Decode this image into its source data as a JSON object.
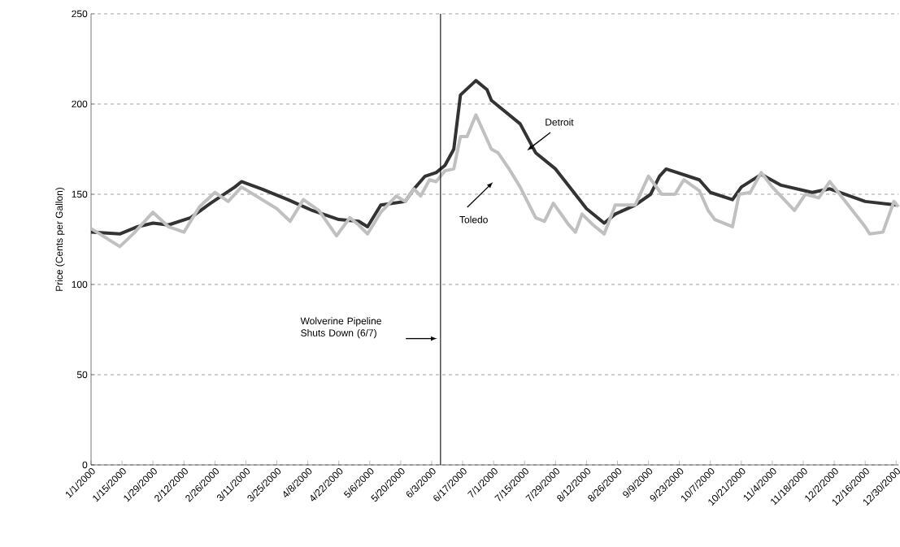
{
  "chart_data": {
    "type": "line",
    "ylabel": "Price (Cents per Gallon)",
    "xlim": [
      "2000-01-01",
      "2000-12-31"
    ],
    "ylim": [
      0,
      250
    ],
    "yticks": [
      0,
      50,
      100,
      150,
      200,
      250
    ],
    "xticks": [
      {
        "value": "2000-01-01",
        "label": "1/1/2000"
      },
      {
        "value": "2000-01-15",
        "label": "1/15/2000"
      },
      {
        "value": "2000-01-29",
        "label": "1/29/2000"
      },
      {
        "value": "2000-02-12",
        "label": "2/12/2000"
      },
      {
        "value": "2000-02-26",
        "label": "2/26/2000"
      },
      {
        "value": "2000-03-11",
        "label": "3/11/2000"
      },
      {
        "value": "2000-03-25",
        "label": "3/25/2000"
      },
      {
        "value": "2000-04-08",
        "label": "4/8/2000"
      },
      {
        "value": "2000-04-22",
        "label": "4/22/2000"
      },
      {
        "value": "2000-05-06",
        "label": "5/6/2000"
      },
      {
        "value": "2000-05-20",
        "label": "5/20/2000"
      },
      {
        "value": "2000-06-03",
        "label": "6/3/2000"
      },
      {
        "value": "2000-06-17",
        "label": "6/17/2000"
      },
      {
        "value": "2000-07-01",
        "label": "7/1/2000"
      },
      {
        "value": "2000-07-15",
        "label": "7/15/2000"
      },
      {
        "value": "2000-07-29",
        "label": "7/29/2000"
      },
      {
        "value": "2000-08-12",
        "label": "8/12/2000"
      },
      {
        "value": "2000-08-26",
        "label": "8/26/2000"
      },
      {
        "value": "2000-09-09",
        "label": "9/9/2000"
      },
      {
        "value": "2000-09-23",
        "label": "9/23/2000"
      },
      {
        "value": "2000-10-07",
        "label": "10/7/2000"
      },
      {
        "value": "2000-10-21",
        "label": "10/21/2000"
      },
      {
        "value": "2000-11-04",
        "label": "11/4/2000"
      },
      {
        "value": "2000-11-18",
        "label": "11/18/2000"
      },
      {
        "value": "2000-12-02",
        "label": "12/2/2000"
      },
      {
        "value": "2000-12-16",
        "label": "12/16/2000"
      },
      {
        "value": "2000-12-30",
        "label": "12/30/2000"
      }
    ],
    "grid": "y",
    "marker": "none",
    "line_style": "solid",
    "series": [
      {
        "color": "#333333",
        "x": [
          "2000-01-01",
          "2000-01-14",
          "2000-01-22",
          "2000-01-29",
          "2000-02-05",
          "2000-02-15",
          "2000-02-24",
          "2000-03-06",
          "2000-03-09",
          "2000-03-18",
          "2000-03-30",
          "2000-04-10",
          "2000-04-22",
          "2000-05-01",
          "2000-05-05",
          "2000-05-11",
          "2000-05-22",
          "2000-05-26",
          "2000-05-31",
          "2000-06-05",
          "2000-06-09",
          "2000-06-13",
          "2000-06-16",
          "2000-06-23",
          "2000-06-28",
          "2000-06-30",
          "2000-07-13",
          "2000-07-20",
          "2000-07-29",
          "2000-08-05",
          "2000-08-12",
          "2000-08-20",
          "2000-08-25",
          "2000-09-03",
          "2000-09-10",
          "2000-09-14",
          "2000-09-17",
          "2000-10-02",
          "2000-10-07",
          "2000-10-17",
          "2000-10-21",
          "2000-10-30",
          "2000-11-08",
          "2000-11-22",
          "2000-11-30",
          "2000-12-16",
          "2000-12-30"
        ],
        "values": [
          129,
          128,
          132,
          134,
          133,
          137,
          145,
          154,
          157,
          153,
          147,
          141,
          136,
          135,
          132,
          144,
          146,
          153,
          160,
          162,
          166,
          175,
          205,
          213,
          208,
          202,
          189,
          173,
          164,
          153,
          142,
          134,
          139,
          144,
          150,
          160,
          164,
          158,
          151,
          147,
          154,
          161,
          155,
          151,
          153,
          146,
          144
        ]
      },
      {
        "color": "#c0c0c0",
        "x": [
          "2000-01-01",
          "2000-01-14",
          "2000-01-20",
          "2000-01-29",
          "2000-02-05",
          "2000-02-12",
          "2000-02-19",
          "2000-02-26",
          "2000-03-03",
          "2000-03-09",
          "2000-03-25",
          "2000-03-31",
          "2000-04-06",
          "2000-04-13",
          "2000-04-21",
          "2000-04-27",
          "2000-05-01",
          "2000-05-05",
          "2000-05-11",
          "2000-05-18",
          "2000-05-22",
          "2000-05-26",
          "2000-05-29",
          "2000-06-02",
          "2000-06-05",
          "2000-06-09",
          "2000-06-13",
          "2000-06-16",
          "2000-06-19",
          "2000-06-23",
          "2000-06-30",
          "2000-07-03",
          "2000-07-08",
          "2000-07-13",
          "2000-07-20",
          "2000-07-24",
          "2000-07-28",
          "2000-08-04",
          "2000-08-07",
          "2000-08-10",
          "2000-08-15",
          "2000-08-20",
          "2000-08-25",
          "2000-09-03",
          "2000-09-09",
          "2000-09-15",
          "2000-09-21",
          "2000-09-25",
          "2000-10-02",
          "2000-10-06",
          "2000-10-09",
          "2000-10-17",
          "2000-10-20",
          "2000-10-25",
          "2000-10-30",
          "2000-11-04",
          "2000-11-14",
          "2000-11-19",
          "2000-11-25",
          "2000-11-30",
          "2000-12-16",
          "2000-12-18",
          "2000-12-24",
          "2000-12-29",
          "2000-12-31"
        ],
        "values": [
          131,
          121,
          128,
          140,
          132,
          129,
          143,
          151,
          146,
          154,
          142,
          135,
          147,
          141,
          127,
          137,
          133,
          128,
          140,
          149,
          146,
          153,
          149,
          158,
          157,
          163,
          164,
          182,
          182,
          194,
          175,
          173,
          164,
          154,
          137,
          135,
          145,
          133,
          129,
          139,
          133,
          128,
          144,
          144,
          160,
          150,
          150,
          158,
          152,
          141,
          136,
          132,
          150,
          151,
          162,
          154,
          141,
          150,
          148,
          157,
          132,
          128,
          129,
          146,
          143
        ]
      }
    ],
    "ref_lines": [
      {
        "axis": "x",
        "value": "2000-06-07",
        "label": "Wolverine Pipeline\nShuts Down (6/7)",
        "color": "#000000"
      }
    ],
    "annotations": [
      "Detroit",
      "Toledo"
    ]
  }
}
